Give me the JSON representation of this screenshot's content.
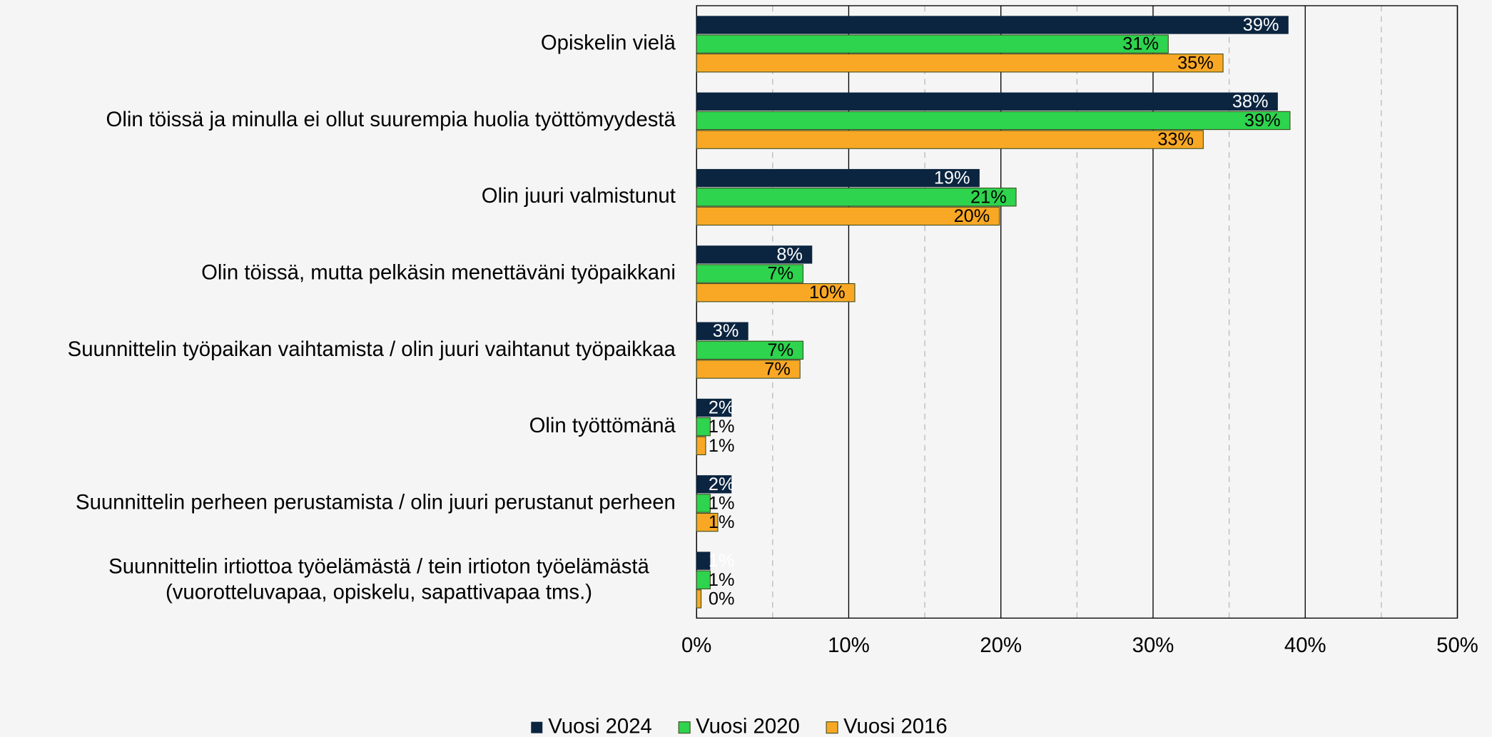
{
  "chart_data": {
    "type": "hbar",
    "categories": [
      "Opiskelin vielä",
      "Olin töissä ja minulla ei ollut suurempia huolia työttömyydestä",
      "Olin juuri valmistunut",
      "Olin töissä, mutta pelkäsin menettäväni työpaikkani",
      "Suunnittelin työpaikan vaihtamista / olin juuri vaihtanut työpaikkaa",
      "Olin työttömänä",
      "Suunnittelin perheen perustamista / olin juuri perustanut perheen",
      "Suunnittelin irtiottoa työelämästä / tein irtioton työelämästä\n(vuorotteluvapaa, opiskelu, sapattivapaa tms.)"
    ],
    "series": [
      {
        "name": "Vuosi 2024",
        "color": "#0b2540",
        "label_color": "#ffffff",
        "values": [
          38.9,
          38.2,
          18.6,
          7.6,
          3.4,
          2.3,
          2.3,
          0.9
        ],
        "value_labels": [
          "39%",
          "38%",
          "19%",
          "8%",
          "3%",
          "2%",
          "2%",
          "1%"
        ]
      },
      {
        "name": "Vuosi 2020",
        "color": "#2ed34e",
        "label_color": "#000000",
        "values": [
          31.0,
          39.0,
          21.0,
          7.0,
          7.0,
          0.9,
          0.9,
          0.9
        ],
        "value_labels": [
          "31%",
          "39%",
          "21%",
          "7%",
          "7%",
          "1%",
          "1%",
          "1%"
        ]
      },
      {
        "name": "Vuosi 2016",
        "color": "#f9a825",
        "label_color": "#000000",
        "values": [
          34.6,
          33.3,
          19.9,
          10.4,
          6.8,
          0.6,
          1.4,
          0.3
        ],
        "value_labels": [
          "35%",
          "33%",
          "20%",
          "10%",
          "7%",
          "1%",
          "1%",
          "0%"
        ]
      }
    ],
    "xlim": [
      0,
      50
    ],
    "xticks": [
      {
        "value": 0,
        "label": "0%"
      },
      {
        "value": 10,
        "label": "10%"
      },
      {
        "value": 20,
        "label": "20%"
      },
      {
        "value": 30,
        "label": "30%"
      },
      {
        "value": 40,
        "label": "40%"
      },
      {
        "value": 50,
        "label": "50%"
      }
    ],
    "minor_xticks": [
      5,
      15,
      25,
      35,
      45
    ],
    "grid": true,
    "legend": "bottom"
  }
}
